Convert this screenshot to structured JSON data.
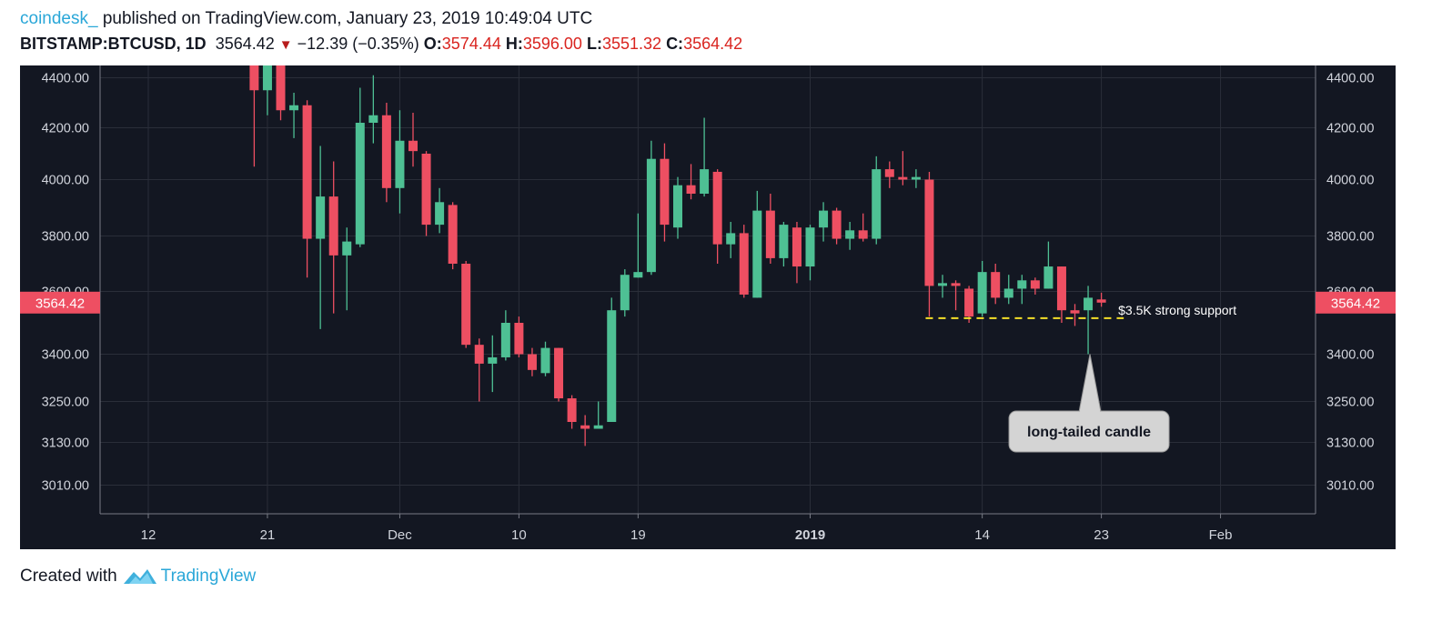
{
  "header": {
    "publisher": "coindesk_",
    "published_text": " published on TradingView.com, January 23, 2019 10:49:04 UTC",
    "symbol": "BITSTAMP:BTCUSD, 1D",
    "last": "3564.42",
    "change": "−12.39 (−0.35%)",
    "o_label": "O:",
    "o": "3574.44",
    "h_label": "H:",
    "h": "3596.00",
    "l_label": "L:",
    "l": "3551.32",
    "c_label": "C:",
    "c": "3564.42"
  },
  "footer": {
    "created_with": "Created with",
    "brand": "TradingView"
  },
  "colors": {
    "up": "#4ec094",
    "down": "#ee4f62",
    "background": "#131722",
    "grid": "#2a2e39",
    "support": "#f5e028",
    "price_tag": "#ee4f62"
  },
  "chart_data": {
    "type": "candlestick",
    "symbol": "BITSTAMP:BTCUSD",
    "interval": "1D",
    "y_ticks": [
      3010,
      3130,
      3250,
      3400,
      3600,
      3800,
      4000,
      4200,
      4400
    ],
    "y_tick_labels": [
      "3010.00",
      "3130.00",
      "3250.00",
      "3400.00",
      "3600.00",
      "3800.00",
      "4000.00",
      "4200.00",
      "4400.00"
    ],
    "x_ticks": [
      {
        "label": "12",
        "date": "2018-11-12",
        "bold": false
      },
      {
        "label": "21",
        "date": "2018-11-21",
        "bold": false
      },
      {
        "label": "Dec",
        "date": "2018-12-01",
        "bold": false
      },
      {
        "label": "10",
        "date": "2018-12-10",
        "bold": false
      },
      {
        "label": "19",
        "date": "2018-12-19",
        "bold": false
      },
      {
        "label": "2019",
        "date": "2019-01-01",
        "bold": true
      },
      {
        "label": "14",
        "date": "2019-01-14",
        "bold": false
      },
      {
        "label": "23",
        "date": "2019-01-23",
        "bold": false
      },
      {
        "label": "Feb",
        "date": "2019-02-01",
        "bold": false
      }
    ],
    "last_price_label": "3564.42",
    "last_price": 3564.42,
    "support": {
      "value": 3515,
      "label": "$3.5K strong support",
      "from": "2019-01-10",
      "to": "2019-01-24"
    },
    "annotation": {
      "text": "long-tailed candle",
      "date": "2019-01-22",
      "price": 3400
    },
    "candles": [
      {
        "date": "2018-11-20",
        "o": 4680,
        "h": 4770,
        "l": 4050,
        "c": 4350
      },
      {
        "date": "2018-11-21",
        "o": 4350,
        "h": 4620,
        "l": 4250,
        "c": 4480
      },
      {
        "date": "2018-11-22",
        "o": 4480,
        "h": 4560,
        "l": 4230,
        "c": 4270
      },
      {
        "date": "2018-11-23",
        "o": 4270,
        "h": 4340,
        "l": 4160,
        "c": 4290
      },
      {
        "date": "2018-11-24",
        "o": 4290,
        "h": 4310,
        "l": 3650,
        "c": 3790
      },
      {
        "date": "2018-11-25",
        "o": 3790,
        "h": 4130,
        "l": 3480,
        "c": 3940
      },
      {
        "date": "2018-11-26",
        "o": 3940,
        "h": 4070,
        "l": 3530,
        "c": 3730
      },
      {
        "date": "2018-11-27",
        "o": 3730,
        "h": 3830,
        "l": 3540,
        "c": 3780
      },
      {
        "date": "2018-11-28",
        "o": 3770,
        "h": 4360,
        "l": 3760,
        "c": 4220
      },
      {
        "date": "2018-11-29",
        "o": 4220,
        "h": 4410,
        "l": 4140,
        "c": 4250
      },
      {
        "date": "2018-11-30",
        "o": 4250,
        "h": 4300,
        "l": 3920,
        "c": 3970
      },
      {
        "date": "2018-12-01",
        "o": 3970,
        "h": 4270,
        "l": 3880,
        "c": 4150
      },
      {
        "date": "2018-12-02",
        "o": 4150,
        "h": 4260,
        "l": 4050,
        "c": 4110
      },
      {
        "date": "2018-12-03",
        "o": 4100,
        "h": 4110,
        "l": 3800,
        "c": 3840
      },
      {
        "date": "2018-12-04",
        "o": 3840,
        "h": 3970,
        "l": 3810,
        "c": 3920
      },
      {
        "date": "2018-12-05",
        "o": 3910,
        "h": 3920,
        "l": 3680,
        "c": 3700
      },
      {
        "date": "2018-12-06",
        "o": 3700,
        "h": 3710,
        "l": 3420,
        "c": 3430
      },
      {
        "date": "2018-12-07",
        "o": 3430,
        "h": 3450,
        "l": 3250,
        "c": 3370
      },
      {
        "date": "2018-12-08",
        "o": 3370,
        "h": 3460,
        "l": 3280,
        "c": 3390
      },
      {
        "date": "2018-12-09",
        "o": 3390,
        "h": 3540,
        "l": 3380,
        "c": 3500
      },
      {
        "date": "2018-12-10",
        "o": 3500,
        "h": 3520,
        "l": 3390,
        "c": 3400
      },
      {
        "date": "2018-12-11",
        "o": 3400,
        "h": 3420,
        "l": 3330,
        "c": 3350
      },
      {
        "date": "2018-12-12",
        "o": 3340,
        "h": 3440,
        "l": 3330,
        "c": 3420
      },
      {
        "date": "2018-12-13",
        "o": 3420,
        "h": 3420,
        "l": 3250,
        "c": 3260
      },
      {
        "date": "2018-12-14",
        "o": 3260,
        "h": 3270,
        "l": 3170,
        "c": 3190
      },
      {
        "date": "2018-12-15",
        "o": 3180,
        "h": 3210,
        "l": 3120,
        "c": 3170
      },
      {
        "date": "2018-12-16",
        "o": 3170,
        "h": 3250,
        "l": 3170,
        "c": 3180
      },
      {
        "date": "2018-12-17",
        "o": 3190,
        "h": 3580,
        "l": 3190,
        "c": 3540
      },
      {
        "date": "2018-12-18",
        "o": 3540,
        "h": 3680,
        "l": 3520,
        "c": 3660
      },
      {
        "date": "2018-12-19",
        "o": 3650,
        "h": 3880,
        "l": 3650,
        "c": 3670
      },
      {
        "date": "2018-12-20",
        "o": 3670,
        "h": 4150,
        "l": 3660,
        "c": 4080
      },
      {
        "date": "2018-12-21",
        "o": 4080,
        "h": 4140,
        "l": 3780,
        "c": 3840
      },
      {
        "date": "2018-12-22",
        "o": 3830,
        "h": 4010,
        "l": 3790,
        "c": 3980
      },
      {
        "date": "2018-12-23",
        "o": 3980,
        "h": 4060,
        "l": 3930,
        "c": 3950
      },
      {
        "date": "2018-12-24",
        "o": 3950,
        "h": 4240,
        "l": 3940,
        "c": 4040
      },
      {
        "date": "2018-12-25",
        "o": 4030,
        "h": 4040,
        "l": 3700,
        "c": 3770
      },
      {
        "date": "2018-12-26",
        "o": 3770,
        "h": 3850,
        "l": 3720,
        "c": 3810
      },
      {
        "date": "2018-12-27",
        "o": 3810,
        "h": 3840,
        "l": 3580,
        "c": 3590
      },
      {
        "date": "2018-12-28",
        "o": 3580,
        "h": 3960,
        "l": 3580,
        "c": 3890
      },
      {
        "date": "2018-12-29",
        "o": 3890,
        "h": 3950,
        "l": 3700,
        "c": 3720
      },
      {
        "date": "2018-12-30",
        "o": 3720,
        "h": 3850,
        "l": 3690,
        "c": 3840
      },
      {
        "date": "2018-12-31",
        "o": 3830,
        "h": 3850,
        "l": 3630,
        "c": 3690
      },
      {
        "date": "2019-01-01",
        "o": 3690,
        "h": 3840,
        "l": 3640,
        "c": 3830
      },
      {
        "date": "2019-01-02",
        "o": 3830,
        "h": 3920,
        "l": 3780,
        "c": 3890
      },
      {
        "date": "2019-01-03",
        "o": 3890,
        "h": 3900,
        "l": 3770,
        "c": 3790
      },
      {
        "date": "2019-01-04",
        "o": 3790,
        "h": 3850,
        "l": 3750,
        "c": 3820
      },
      {
        "date": "2019-01-05",
        "o": 3820,
        "h": 3880,
        "l": 3780,
        "c": 3790
      },
      {
        "date": "2019-01-06",
        "o": 3790,
        "h": 4090,
        "l": 3770,
        "c": 4040
      },
      {
        "date": "2019-01-07",
        "o": 4040,
        "h": 4070,
        "l": 3970,
        "c": 4010
      },
      {
        "date": "2019-01-08",
        "o": 4010,
        "h": 4110,
        "l": 3980,
        "c": 4000
      },
      {
        "date": "2019-01-09",
        "o": 4000,
        "h": 4040,
        "l": 3970,
        "c": 4010
      },
      {
        "date": "2019-01-10",
        "o": 4000,
        "h": 4030,
        "l": 3520,
        "c": 3620
      },
      {
        "date": "2019-01-11",
        "o": 3620,
        "h": 3660,
        "l": 3580,
        "c": 3630
      },
      {
        "date": "2019-01-12",
        "o": 3630,
        "h": 3640,
        "l": 3540,
        "c": 3620
      },
      {
        "date": "2019-01-13",
        "o": 3610,
        "h": 3620,
        "l": 3500,
        "c": 3520
      },
      {
        "date": "2019-01-14",
        "o": 3530,
        "h": 3710,
        "l": 3520,
        "c": 3670
      },
      {
        "date": "2019-01-15",
        "o": 3670,
        "h": 3700,
        "l": 3560,
        "c": 3580
      },
      {
        "date": "2019-01-16",
        "o": 3580,
        "h": 3660,
        "l": 3560,
        "c": 3610
      },
      {
        "date": "2019-01-17",
        "o": 3610,
        "h": 3660,
        "l": 3560,
        "c": 3640
      },
      {
        "date": "2019-01-18",
        "o": 3640,
        "h": 3650,
        "l": 3590,
        "c": 3610
      },
      {
        "date": "2019-01-19",
        "o": 3610,
        "h": 3780,
        "l": 3610,
        "c": 3690
      },
      {
        "date": "2019-01-20",
        "o": 3690,
        "h": 3690,
        "l": 3500,
        "c": 3540
      },
      {
        "date": "2019-01-21",
        "o": 3540,
        "h": 3560,
        "l": 3490,
        "c": 3530
      },
      {
        "date": "2019-01-22",
        "o": 3540,
        "h": 3620,
        "l": 3400,
        "c": 3580
      },
      {
        "date": "2019-01-23",
        "o": 3574.44,
        "h": 3596,
        "l": 3551.32,
        "c": 3564.42
      }
    ]
  }
}
